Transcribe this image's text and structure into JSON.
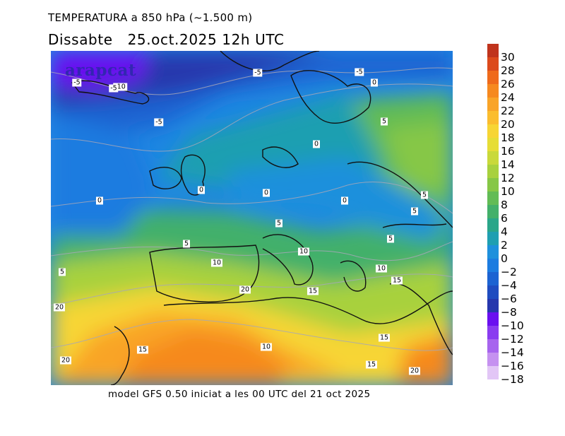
{
  "title": "TEMPERATURA a 850 hPa (~1.500 m)",
  "subtitle": "Dissabte   25.oct.2025 12h UTC",
  "footer": "model GFS 0.50 iniciat a les 00 UTC del 21 oct 2025",
  "watermark": "arapcat",
  "map": {
    "variable": "temperature at 850 hPa",
    "units": "°C",
    "contour_labels": [
      "-5",
      "-5",
      "-5",
      "-10",
      "-5",
      "-5",
      "0",
      "5",
      "0",
      "0",
      "0",
      "0",
      "0",
      "5",
      "5",
      "5",
      "5",
      "5",
      "5",
      "10",
      "10",
      "10",
      "15",
      "15",
      "20",
      "20",
      "15",
      "10",
      "15",
      "20",
      "15",
      "20"
    ]
  },
  "colorbar": {
    "ticks": [
      "30",
      "28",
      "26",
      "24",
      "22",
      "20",
      "18",
      "16",
      "14",
      "12",
      "10",
      "8",
      "6",
      "4",
      "2",
      "0",
      "−2",
      "−4",
      "−6",
      "−8",
      "−10",
      "−12",
      "−14",
      "−16",
      "−18"
    ],
    "colors": [
      "#c0341d",
      "#dc4a1c",
      "#ef6a1b",
      "#f6891f",
      "#f9a428",
      "#fbbd2e",
      "#f7d534",
      "#e6dd36",
      "#c9d93a",
      "#a8d13e",
      "#86c746",
      "#62bc55",
      "#43b06a",
      "#2aa689",
      "#1f9fb1",
      "#1e90dc",
      "#1c7ce0",
      "#1c63d2",
      "#1f4cc0",
      "#2637ad",
      "#6a10f0",
      "#8a3cf0",
      "#a764ee",
      "#c591f0",
      "#e2c6f6"
    ]
  }
}
